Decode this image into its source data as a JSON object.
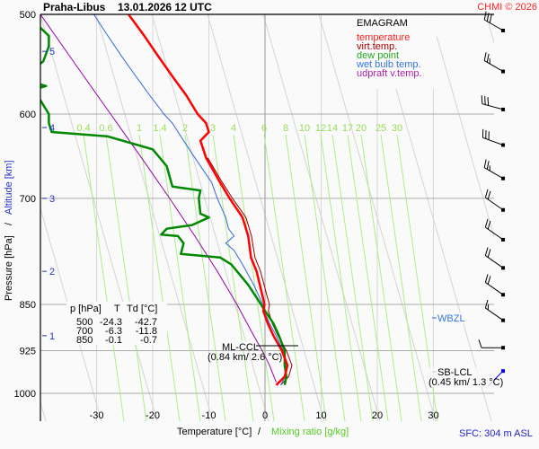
{
  "header": {
    "station": "Praha-Libus",
    "datetime": "13.01.2026 12 UTC",
    "copyright": "CHMI © 2026"
  },
  "legend": {
    "title": "EMAGRAM",
    "items": [
      {
        "label": "temperature",
        "color": "#ff0000"
      },
      {
        "label": "virt.temp.",
        "color": "#990000"
      },
      {
        "label": "dew point",
        "color": "#008800"
      },
      {
        "label": "wet bulb temp.",
        "color": "#3366dd"
      },
      {
        "label": "udpraft v.temp.",
        "color": "#9900aa"
      }
    ]
  },
  "table": {
    "headers": [
      "p [hPa]",
      "T",
      "Td [°C]"
    ],
    "rows": [
      [
        "500",
        "-24.3",
        "-42.7"
      ],
      [
        "700",
        "-6.3",
        "-11.8"
      ],
      [
        "850",
        "-0.1",
        "-0.7"
      ]
    ]
  },
  "annotations": {
    "ml_ccl_label": "ML-CCL",
    "ml_ccl_value": "(0.84 km/ 2.6 °C)",
    "sb_lcl_label": "SB-LCL",
    "sb_lcl_value": "(0.45 km/ 1.3 °C)",
    "wbzl_label": "WBZL",
    "sfc": "SFC: 304 m ASL"
  },
  "chart_data": {
    "type": "line",
    "title": "Praha-Libus 13.01.2026 12 UTC",
    "xlabel": "Temperature [°C]",
    "xlabel2": "Mixing ratio [g/kg]",
    "ylabel": "Pressure [hPa]",
    "ylabel2": "Altitude [km]",
    "xlim": [
      -40,
      40
    ],
    "ylim": [
      1050,
      500
    ],
    "x_ticks": [
      "-30",
      "-20",
      "-10",
      "0",
      "10",
      "20",
      "30"
    ],
    "x_tick_values": [
      -30,
      -20,
      -10,
      0,
      10,
      20,
      30
    ],
    "y_ticks": [
      "500",
      "600",
      "700",
      "850",
      "925",
      "1000"
    ],
    "y_tick_values": [
      500,
      600,
      700,
      850,
      925,
      1000
    ],
    "altitude_ticks": [
      "1",
      "2",
      "3",
      "4",
      "5"
    ],
    "altitude_pressures": [
      900,
      800,
      700,
      615,
      535
    ],
    "mixing_ratio_labels": [
      "0.4",
      "0.6",
      "1",
      "1.4",
      "2",
      "3",
      "4",
      "6",
      "8",
      "10",
      "12",
      "14",
      "17",
      "20",
      "25",
      "30"
    ],
    "series": [
      {
        "name": "temperature",
        "color": "#ff0000",
        "p": [
          985,
          970,
          950,
          925,
          900,
          880,
          860,
          850,
          835,
          800,
          780,
          750,
          725,
          700,
          680,
          650,
          630,
          620,
          610,
          600,
          580,
          560,
          540,
          520,
          500
        ],
        "t": [
          2.0,
          3.5,
          4.0,
          3.0,
          1.5,
          0.5,
          -0.3,
          -0.1,
          -0.5,
          -1.5,
          -2.5,
          -3.0,
          -4.0,
          -6.3,
          -8.0,
          -10.5,
          -11.5,
          -10.0,
          -10.5,
          -12.0,
          -14.0,
          -16.5,
          -19.0,
          -21.5,
          -24.3
        ]
      },
      {
        "name": "virt.temp.",
        "color": "#990000",
        "p": [
          985,
          970,
          950,
          925,
          900,
          880,
          860,
          850,
          835,
          800,
          780,
          750,
          725,
          700,
          680,
          650
        ],
        "t": [
          2.8,
          4.2,
          4.8,
          3.8,
          2.3,
          1.3,
          0.6,
          0.8,
          0.3,
          -0.8,
          -1.8,
          -2.4,
          -3.4,
          -5.8,
          -7.6,
          -10.2
        ]
      },
      {
        "name": "dew point",
        "color": "#008800",
        "p": [
          985,
          970,
          950,
          925,
          900,
          880,
          860,
          850,
          820,
          790,
          780,
          775,
          760,
          750,
          748,
          740,
          735,
          725,
          720,
          700,
          690,
          685,
          660,
          640,
          625,
          620,
          610,
          600,
          590,
          580,
          575,
          570,
          565,
          555,
          545,
          530,
          520,
          510,
          505
        ],
        "t": [
          3.5,
          3.8,
          3.5,
          3.5,
          2.5,
          1.5,
          0.0,
          -0.7,
          -3.0,
          -6.0,
          -8.0,
          -15.0,
          -14.5,
          -15.5,
          -18.5,
          -17.5,
          -13.0,
          -10.0,
          -11.5,
          -11.8,
          -11.5,
          -16.5,
          -17.5,
          -20.0,
          -28.0,
          -38.0,
          -38.5,
          -38.5,
          -39.5,
          -40.5,
          -42.0,
          -39.0,
          -42.0,
          -42.0,
          -39.5,
          -38.5,
          -38.5,
          -40.5,
          -42.7
        ]
      },
      {
        "name": "wet bulb temp.",
        "color": "#3366dd",
        "p": [
          985,
          970,
          950,
          925,
          900,
          880,
          860,
          850,
          820,
          790,
          770,
          760,
          750,
          740,
          725,
          700,
          680,
          650,
          630,
          610,
          600,
          580,
          560,
          540,
          520,
          500
        ],
        "t": [
          2.8,
          3.6,
          3.8,
          3.2,
          2.0,
          0.8,
          -0.2,
          -0.4,
          -2.0,
          -4.0,
          -5.5,
          -7.0,
          -5.5,
          -6.5,
          -7.0,
          -8.5,
          -9.5,
          -12.5,
          -14.5,
          -16.5,
          -18.0,
          -20.5,
          -23.0,
          -25.5,
          -28.0,
          -30.5
        ]
      },
      {
        "name": "udpraft v.temp.",
        "color": "#9900aa",
        "p": [
          980,
          950,
          925,
          900,
          850,
          800,
          750,
          700,
          650,
          600,
          550,
          500
        ],
        "t": [
          2.0,
          0.8,
          -0.5,
          -2.0,
          -5.0,
          -8.5,
          -12.5,
          -17.0,
          -22.0,
          -27.5,
          -33.5,
          -40.0
        ]
      }
    ],
    "wind_barbs": {
      "pressure": [
        515,
        555,
        595,
        635,
        675,
        715,
        755,
        795,
        835,
        875,
        920,
        960
      ],
      "direction_deg": [
        300,
        300,
        285,
        290,
        300,
        305,
        305,
        305,
        305,
        305,
        270,
        225
      ],
      "speed_kt": [
        30,
        25,
        30,
        30,
        25,
        20,
        20,
        20,
        20,
        15,
        10,
        5
      ]
    },
    "legend_position": "top-right",
    "grid": true
  }
}
